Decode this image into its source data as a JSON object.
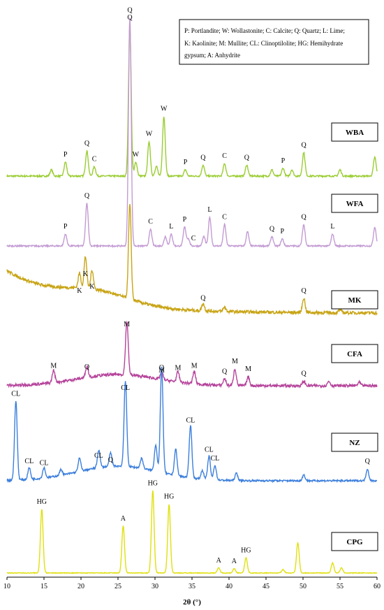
{
  "chart_data": {
    "type": "line",
    "xlabel": "2θ (°)",
    "xlim": [
      10,
      60
    ],
    "xticks": [
      10,
      15,
      20,
      25,
      30,
      35,
      40,
      45,
      50,
      55,
      60
    ],
    "legend": {
      "lines": [
        "P: Portlandite; W: Wollastonite; C: Calcite; Q: Quartz; L: Lime;",
        "K: Kaolinite; M: Mullite; CL: Clinoptilolite; HG: Hemihydrate",
        "gypsum; A: Anhydrite"
      ],
      "placement": "top-right"
    },
    "series": [
      {
        "name": "WBA",
        "color": "#9acd32",
        "peaks": [
          [
            16,
            0.2
          ],
          [
            17.9,
            0.45
          ],
          [
            20.8,
            0.8
          ],
          [
            21.8,
            0.3
          ],
          [
            26.6,
            4.8
          ],
          [
            27.4,
            0.45
          ],
          [
            29.2,
            1.1
          ],
          [
            30.2,
            0.3
          ],
          [
            31.2,
            1.9
          ],
          [
            34.1,
            0.2
          ],
          [
            36.5,
            0.35
          ],
          [
            39.4,
            0.4
          ],
          [
            42.4,
            0.35
          ],
          [
            45.8,
            0.2
          ],
          [
            47.3,
            0.25
          ],
          [
            48.5,
            0.2
          ],
          [
            50.1,
            0.75
          ],
          [
            55,
            0.2
          ],
          [
            59.7,
            0.6
          ]
        ],
        "labels": [
          [
            "P",
            17.9
          ],
          [
            "Q",
            20.8
          ],
          [
            "C",
            21.8
          ],
          [
            "Q",
            26.6
          ],
          [
            "W",
            27.4
          ],
          [
            "W",
            29.2
          ],
          [
            "W",
            31.2
          ],
          [
            "P",
            34.1
          ],
          [
            "Q",
            36.5
          ],
          [
            "C",
            39.4
          ],
          [
            "Q",
            42.4
          ],
          [
            "P",
            47.3
          ],
          [
            "Q",
            50.1
          ]
        ]
      },
      {
        "name": "WFA",
        "color": "#c39bd3",
        "peaks": [
          [
            17.9,
            0.25
          ],
          [
            20.8,
            0.9
          ],
          [
            26.6,
            4.8
          ],
          [
            29.4,
            0.35
          ],
          [
            31.4,
            0.2
          ],
          [
            32.2,
            0.25
          ],
          [
            34,
            0.4
          ],
          [
            34.5,
            0.15
          ],
          [
            36.6,
            0.2
          ],
          [
            37.4,
            0.6
          ],
          [
            39.4,
            0.45
          ],
          [
            42.5,
            0.3
          ],
          [
            45.8,
            0.2
          ],
          [
            47.2,
            0.15
          ],
          [
            50.1,
            0.45
          ],
          [
            54,
            0.25
          ],
          [
            59.7,
            0.4
          ]
        ],
        "labels": [
          [
            "P",
            17.9
          ],
          [
            "Q",
            20.8
          ],
          [
            "Q",
            26.6
          ],
          [
            "C",
            29.4
          ],
          [
            "L",
            32.2
          ],
          [
            "P",
            34
          ],
          [
            "C",
            35.2
          ],
          [
            "L",
            37.4
          ],
          [
            "C",
            39.4
          ],
          [
            "Q",
            45.8
          ],
          [
            "P",
            47.2
          ],
          [
            "Q",
            50.1
          ],
          [
            "L",
            54
          ]
        ]
      },
      {
        "name": "MK",
        "color": "#c8a415",
        "peaks": [
          [
            19.8,
            0.7
          ],
          [
            20.6,
            1.5
          ],
          [
            21.5,
            0.9
          ],
          [
            26.6,
            4.5
          ],
          [
            36.5,
            0.35
          ],
          [
            39.4,
            0.2
          ],
          [
            50.1,
            0.7
          ],
          [
            55,
            0.15
          ]
        ],
        "labels": [
          [
            "K",
            19.8
          ],
          [
            "K",
            20.6
          ],
          [
            "K",
            21.5
          ],
          [
            "Q",
            36.5
          ],
          [
            "Q",
            50.1
          ]
        ]
      },
      {
        "name": "CFA",
        "color": "#b5449b",
        "peaks": [
          [
            16.3,
            0.55
          ],
          [
            20.8,
            0.5
          ],
          [
            26.2,
            2.4
          ],
          [
            30.9,
            0.35
          ],
          [
            33.1,
            0.45
          ],
          [
            35.3,
            0.55
          ],
          [
            39.4,
            0.3
          ],
          [
            40.8,
            0.75
          ],
          [
            42.6,
            0.4
          ],
          [
            50.1,
            0.2
          ],
          [
            53.5,
            0.2
          ],
          [
            57.6,
            0.15
          ]
        ],
        "labels": [
          [
            "M",
            16.3
          ],
          [
            "Q",
            20.8
          ],
          [
            "M",
            26.2
          ],
          [
            "M",
            30.9
          ],
          [
            "M",
            33.1
          ],
          [
            "M",
            35.3
          ],
          [
            "Q",
            39.4
          ],
          [
            "M",
            40.8
          ],
          [
            "M",
            42.6
          ],
          [
            "Q",
            50.1
          ]
        ]
      },
      {
        "name": "NZ",
        "color": "#3c7fdc",
        "peaks": [
          [
            11.2,
            2.7
          ],
          [
            13,
            0.4
          ],
          [
            15,
            0.35
          ],
          [
            17.3,
            0.2
          ],
          [
            19.8,
            0.45
          ],
          [
            22.4,
            0.6
          ],
          [
            24,
            0.45
          ],
          [
            26.0,
            2.9
          ],
          [
            28.2,
            0.35
          ],
          [
            30.1,
            0.9
          ],
          [
            30.9,
            3.6
          ],
          [
            32.8,
            0.9
          ],
          [
            34.8,
            1.8
          ],
          [
            36.4,
            0.3
          ],
          [
            37.3,
            0.8
          ],
          [
            38.1,
            0.5
          ],
          [
            41,
            0.25
          ],
          [
            50.1,
            0.2
          ],
          [
            58.7,
            0.4
          ]
        ],
        "labels": [
          [
            "CL",
            11.2
          ],
          [
            "CL",
            13
          ],
          [
            "CL",
            15
          ],
          [
            "CL",
            22.4
          ],
          [
            "Q",
            24
          ],
          [
            "CL",
            26
          ],
          [
            "Q",
            30.9
          ],
          [
            "CL",
            34.8
          ],
          [
            "CL",
            37.3
          ],
          [
            "CL",
            38.1
          ],
          [
            "Q",
            58.7
          ]
        ]
      },
      {
        "name": "CPG",
        "color": "#e0e010",
        "peaks": [
          [
            14.7,
            3.8
          ],
          [
            25.7,
            2.8
          ],
          [
            29.7,
            4.9
          ],
          [
            31.9,
            4.1
          ],
          [
            38.6,
            0.3
          ],
          [
            40.7,
            0.25
          ],
          [
            42.3,
            0.9
          ],
          [
            47.3,
            0.2
          ],
          [
            49.3,
            1.8
          ],
          [
            54,
            0.6
          ],
          [
            55.2,
            0.3
          ]
        ],
        "labels": [
          [
            "HG",
            14.7
          ],
          [
            "A",
            25.7
          ],
          [
            "HG",
            29.7
          ],
          [
            "HG",
            31.9
          ],
          [
            "A",
            38.6
          ],
          [
            "A",
            40.7
          ],
          [
            "HG",
            42.3
          ]
        ]
      }
    ]
  }
}
